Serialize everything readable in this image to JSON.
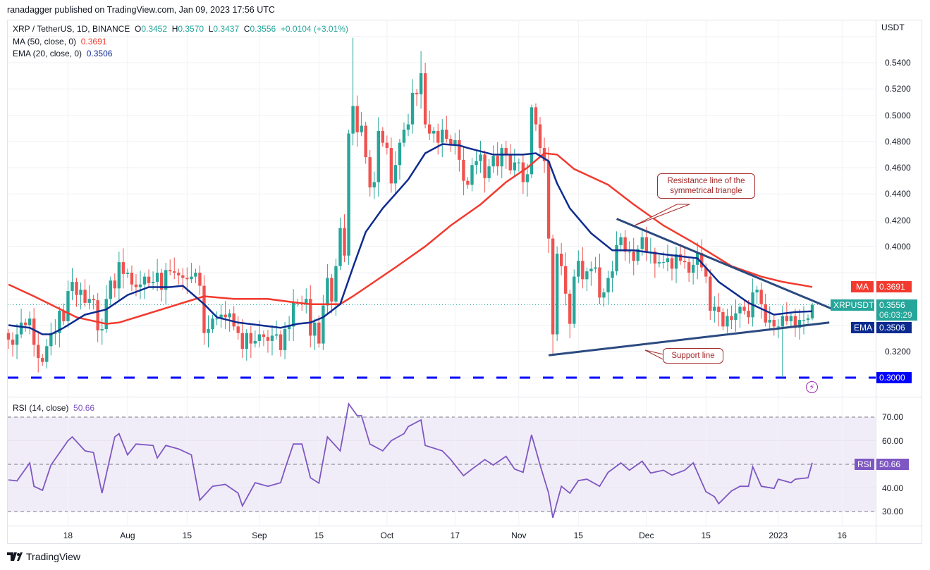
{
  "publisher": "ranadagger published on TradingView.com, Jan 09, 2023 17:56 UTC",
  "legend": {
    "symbol": "XRP / TetherUS, 1D, BINANCE",
    "o_label": "O",
    "o": "0.3452",
    "h_label": "H",
    "h": "0.3570",
    "l_label": "L",
    "l": "0.3437",
    "c_label": "C",
    "c": "0.3556",
    "change": "+0.0104 (+3.01%)",
    "ma_label": "MA (50, close, 0)",
    "ma_value": "0.3691",
    "ema_label": "EMA (20, close, 0)",
    "ema_value": "0.3506",
    "rsi_label": "RSI (14, close)",
    "rsi_value": "50.66"
  },
  "axis": {
    "currency": "USDT",
    "badges": {
      "ma_tag": "MA",
      "ma": "0.3691",
      "symbol_tag": "XRPUSDT",
      "price": "0.3556",
      "countdown": "06:03:29",
      "ema_tag": "EMA",
      "ema": "0.3506",
      "level": "0.3000",
      "rsi_tag": "RSI",
      "rsi": "50.66"
    }
  },
  "annotations": {
    "resistance_callout": "Resistance line of the symmetrical triangle",
    "support_callout": "Support line"
  },
  "logo_text": "TradingView",
  "colors": {
    "up": "#26a69a",
    "down": "#ef5350",
    "ma": "#f23a2e",
    "ema": "#0d2b8f",
    "rsi": "#7e57c2",
    "level": "#0000ff",
    "trend": "#2b4a80"
  },
  "chart_data": [
    {
      "type": "candlestick",
      "title": "XRP / TetherUS, 1D, BINANCE",
      "start_date": "2022-07-04",
      "ylim": [
        0.29,
        0.566
      ],
      "yticks": [
        0.3,
        0.32,
        0.34,
        0.36,
        0.38,
        0.4,
        0.42,
        0.44,
        0.46,
        0.48,
        0.5,
        0.52,
        0.54,
        0.56
      ],
      "xticks": [
        {
          "day": 14,
          "label": "18"
        },
        {
          "day": 28,
          "label": "Aug"
        },
        {
          "day": 42,
          "label": "15"
        },
        {
          "day": 59,
          "label": "Sep"
        },
        {
          "day": 73,
          "label": "15"
        },
        {
          "day": 89,
          "label": "Oct"
        },
        {
          "day": 105,
          "label": "17"
        },
        {
          "day": 120,
          "label": "Nov"
        },
        {
          "day": 134,
          "label": "15"
        },
        {
          "day": 150,
          "label": "Dec"
        },
        {
          "day": 164,
          "label": "15"
        },
        {
          "day": 181,
          "label": "2023"
        },
        {
          "day": 196,
          "label": "16"
        }
      ],
      "first_open": 0.334,
      "closes": [
        0.329,
        0.325,
        0.333,
        0.342,
        0.34,
        0.345,
        0.325,
        0.315,
        0.312,
        0.324,
        0.334,
        0.334,
        0.351,
        0.343,
        0.366,
        0.373,
        0.363,
        0.367,
        0.357,
        0.36,
        0.359,
        0.336,
        0.337,
        0.36,
        0.374,
        0.368,
        0.388,
        0.379,
        0.38,
        0.371,
        0.369,
        0.371,
        0.377,
        0.372,
        0.373,
        0.38,
        0.367,
        0.382,
        0.381,
        0.38,
        0.378,
        0.376,
        0.375,
        0.377,
        0.38,
        0.37,
        0.334,
        0.337,
        0.345,
        0.345,
        0.348,
        0.346,
        0.349,
        0.339,
        0.334,
        0.322,
        0.334,
        0.326,
        0.328,
        0.333,
        0.331,
        0.328,
        0.332,
        0.333,
        0.321,
        0.337,
        0.339,
        0.357,
        0.357,
        0.356,
        0.36,
        0.332,
        0.342,
        0.326,
        0.355,
        0.376,
        0.358,
        0.385,
        0.414,
        0.393,
        0.486,
        0.507,
        0.487,
        0.492,
        0.468,
        0.445,
        0.449,
        0.488,
        0.479,
        0.475,
        0.448,
        0.462,
        0.479,
        0.489,
        0.493,
        0.517,
        0.516,
        0.532,
        0.493,
        0.486,
        0.488,
        0.479,
        0.489,
        0.482,
        0.477,
        0.481,
        0.466,
        0.45,
        0.447,
        0.462,
        0.465,
        0.47,
        0.452,
        0.461,
        0.469,
        0.461,
        0.475,
        0.47,
        0.458,
        0.464,
        0.464,
        0.449,
        0.455,
        0.506,
        0.493,
        0.475,
        0.465,
        0.406,
        0.333,
        0.3945,
        0.385,
        0.364,
        0.341,
        0.377,
        0.389,
        0.375,
        0.381,
        0.383,
        0.384,
        0.361,
        0.365,
        0.376,
        0.381,
        0.401,
        0.407,
        0.396,
        0.396,
        0.389,
        0.398,
        0.407,
        0.396,
        0.396,
        0.387,
        0.388,
        0.388,
        0.391,
        0.383,
        0.394,
        0.389,
        0.388,
        0.38,
        0.386,
        0.395,
        0.384,
        0.377,
        0.351,
        0.354,
        0.35,
        0.339,
        0.347,
        0.344,
        0.349,
        0.354,
        0.351,
        0.346,
        0.365,
        0.367,
        0.356,
        0.342,
        0.344,
        0.339,
        0.339,
        0.347,
        0.343,
        0.347,
        0.338,
        0.344,
        0.344,
        0.3452,
        0.3556
      ],
      "wick_overrides": [
        {
          "day": 81,
          "high": 0.559
        },
        {
          "day": 97,
          "high": 0.549
        },
        {
          "day": 123,
          "high": 0.508
        },
        {
          "day": 128,
          "low": 0.318
        },
        {
          "day": 182,
          "low": 0.3
        },
        {
          "day": 189,
          "open": 0.3452,
          "high": 0.357,
          "low": 0.3437,
          "close": 0.3556
        }
      ],
      "ma50": [
        [
          0,
          0.371
        ],
        [
          6,
          0.362
        ],
        [
          11,
          0.354
        ],
        [
          16,
          0.346
        ],
        [
          23,
          0.341
        ],
        [
          26,
          0.342
        ],
        [
          31,
          0.347
        ],
        [
          38,
          0.354
        ],
        [
          42,
          0.358
        ],
        [
          46,
          0.362
        ],
        [
          53,
          0.36
        ],
        [
          61,
          0.36
        ],
        [
          68,
          0.357
        ],
        [
          71,
          0.356
        ],
        [
          78,
          0.356
        ],
        [
          81,
          0.362
        ],
        [
          86,
          0.373
        ],
        [
          91,
          0.384
        ],
        [
          98,
          0.4
        ],
        [
          104,
          0.416
        ],
        [
          111,
          0.432
        ],
        [
          117,
          0.449
        ],
        [
          122,
          0.46
        ],
        [
          126,
          0.471
        ],
        [
          129,
          0.47
        ],
        [
          133,
          0.459
        ],
        [
          141,
          0.447
        ],
        [
          147,
          0.432
        ],
        [
          154,
          0.416
        ],
        [
          161,
          0.403
        ],
        [
          166,
          0.393
        ],
        [
          170,
          0.385
        ],
        [
          177,
          0.377
        ],
        [
          182,
          0.373
        ],
        [
          189,
          0.3691
        ]
      ],
      "ema20": [
        [
          0,
          0.34
        ],
        [
          5,
          0.338
        ],
        [
          8,
          0.333
        ],
        [
          10,
          0.333
        ],
        [
          13,
          0.338
        ],
        [
          18,
          0.348
        ],
        [
          23,
          0.352
        ],
        [
          28,
          0.363
        ],
        [
          33,
          0.369
        ],
        [
          38,
          0.369
        ],
        [
          41,
          0.37
        ],
        [
          46,
          0.356
        ],
        [
          49,
          0.346
        ],
        [
          54,
          0.342
        ],
        [
          59,
          0.34
        ],
        [
          64,
          0.338
        ],
        [
          68,
          0.341
        ],
        [
          71,
          0.342
        ],
        [
          74,
          0.346
        ],
        [
          78,
          0.356
        ],
        [
          81,
          0.384
        ],
        [
          84,
          0.411
        ],
        [
          88,
          0.429
        ],
        [
          91,
          0.44
        ],
        [
          94,
          0.451
        ],
        [
          98,
          0.471
        ],
        [
          102,
          0.478
        ],
        [
          106,
          0.477
        ],
        [
          108,
          0.475
        ],
        [
          114,
          0.47
        ],
        [
          121,
          0.47
        ],
        [
          124,
          0.471
        ],
        [
          127,
          0.465
        ],
        [
          129,
          0.448
        ],
        [
          132,
          0.429
        ],
        [
          137,
          0.41
        ],
        [
          142,
          0.397
        ],
        [
          147,
          0.397
        ],
        [
          154,
          0.394
        ],
        [
          162,
          0.391
        ],
        [
          167,
          0.373
        ],
        [
          174,
          0.357
        ],
        [
          180,
          0.348
        ],
        [
          185,
          0.35
        ],
        [
          189,
          0.3506
        ]
      ],
      "horizontal_level": 0.3,
      "resistance_line": [
        [
          143,
          0.421
        ],
        [
          194,
          0.352
        ]
      ],
      "support_line": [
        [
          127,
          0.317
        ],
        [
          193,
          0.342
        ]
      ]
    },
    {
      "type": "line",
      "title": "RSI (14, close)",
      "ylim": [
        25,
        80
      ],
      "yticks": [
        30,
        40,
        50,
        60,
        70
      ],
      "band": [
        30,
        70
      ],
      "points": [
        [
          0,
          43.4
        ],
        [
          2,
          43
        ],
        [
          5,
          50.6
        ],
        [
          6,
          40.7
        ],
        [
          8,
          39
        ],
        [
          10,
          49.7
        ],
        [
          14,
          60
        ],
        [
          15,
          61.6
        ],
        [
          18,
          55.7
        ],
        [
          20,
          55
        ],
        [
          22,
          37.8
        ],
        [
          25,
          61.6
        ],
        [
          26,
          63
        ],
        [
          28,
          54
        ],
        [
          30,
          58.6
        ],
        [
          34,
          58
        ],
        [
          35,
          52.7
        ],
        [
          37,
          58
        ],
        [
          40,
          56.5
        ],
        [
          43,
          54
        ],
        [
          45,
          34.8
        ],
        [
          48,
          40.7
        ],
        [
          51,
          41.5
        ],
        [
          54,
          37.8
        ],
        [
          55,
          32.4
        ],
        [
          58,
          42.2
        ],
        [
          61,
          40.7
        ],
        [
          64,
          42.2
        ],
        [
          65,
          48
        ],
        [
          67,
          58.6
        ],
        [
          69,
          58.6
        ],
        [
          71,
          44.3
        ],
        [
          73,
          42
        ],
        [
          75,
          61.6
        ],
        [
          78,
          55.7
        ],
        [
          80,
          75.6
        ],
        [
          82,
          70.6
        ],
        [
          83,
          70.6
        ],
        [
          85,
          58.6
        ],
        [
          88,
          55.7
        ],
        [
          90,
          60
        ],
        [
          93,
          63
        ],
        [
          94,
          66
        ],
        [
          97,
          68.8
        ],
        [
          98,
          58
        ],
        [
          102,
          55.7
        ],
        [
          104,
          52
        ],
        [
          107,
          45.2
        ],
        [
          109,
          48
        ],
        [
          112,
          52
        ],
        [
          114,
          49.7
        ],
        [
          117,
          53.4
        ],
        [
          119,
          48
        ],
        [
          121,
          46.6
        ],
        [
          123,
          62.5
        ],
        [
          125,
          49.7
        ],
        [
          127,
          37.8
        ],
        [
          128,
          27.3
        ],
        [
          130,
          40.7
        ],
        [
          132,
          37.8
        ],
        [
          134,
          43.1
        ],
        [
          136,
          43.7
        ],
        [
          139,
          40.7
        ],
        [
          141,
          46.6
        ],
        [
          144,
          50.6
        ],
        [
          146,
          47.5
        ],
        [
          149,
          51.3
        ],
        [
          151,
          46.3
        ],
        [
          154,
          47.5
        ],
        [
          156,
          45.4
        ],
        [
          159,
          47.5
        ],
        [
          161,
          50.6
        ],
        [
          164,
          38.4
        ],
        [
          166,
          36.3
        ],
        [
          167,
          33.3
        ],
        [
          170,
          38.7
        ],
        [
          172,
          40.7
        ],
        [
          174,
          40.7
        ],
        [
          175,
          49
        ],
        [
          177,
          40.7
        ],
        [
          180,
          39.8
        ],
        [
          181,
          43.7
        ],
        [
          184,
          42.2
        ],
        [
          185,
          43.7
        ],
        [
          188,
          44.3
        ],
        [
          189,
          50.66
        ]
      ]
    }
  ]
}
